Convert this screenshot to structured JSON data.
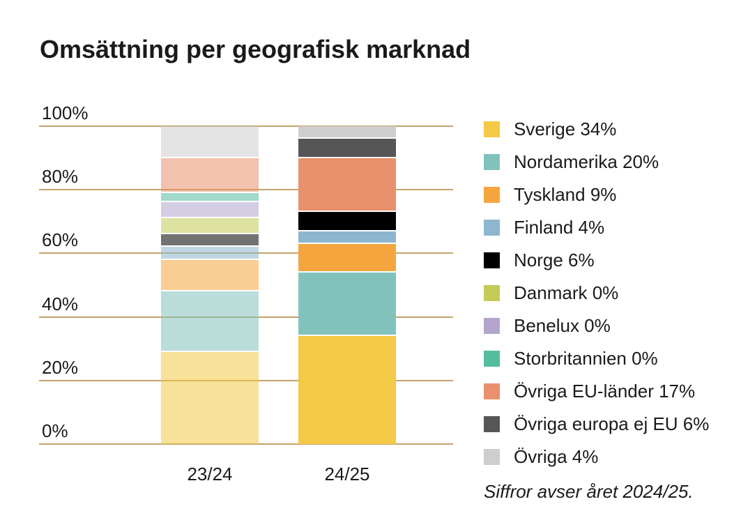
{
  "title": "Omsättning per geografisk marknad",
  "footnote": "Siffror avser året 2024/25.",
  "colors": {
    "gridline": "#c2a468",
    "background": "#ffffff",
    "text": "#1a1a1a"
  },
  "chart_data": {
    "type": "bar",
    "stacked": true,
    "percent_stacked": true,
    "title": "Omsättning per geografisk marknad",
    "xlabel": "",
    "ylabel": "",
    "ylim": [
      0,
      100
    ],
    "grid": true,
    "legend_position": "right",
    "categories": [
      "23/24",
      "24/25"
    ],
    "y_ticks": [
      "100%",
      "80%",
      "60%",
      "40%",
      "20%",
      "0%"
    ],
    "series": [
      {
        "name": "Sverige",
        "legend_label": "Sverige 34%",
        "color": "#f3c946",
        "values": [
          29,
          34
        ]
      },
      {
        "name": "Nordamerika",
        "legend_label": "Nordamerika 20%",
        "color": "#82c2bc",
        "values": [
          19,
          20
        ]
      },
      {
        "name": "Tyskland",
        "legend_label": "Tyskland 9%",
        "color": "#f5a53d",
        "values": [
          10,
          9
        ]
      },
      {
        "name": "Finland",
        "legend_label": "Finland 4%",
        "color": "#8eb6ce",
        "values": [
          4,
          4
        ]
      },
      {
        "name": "Norge",
        "legend_label": "Norge 6%",
        "color": "#000000",
        "values": [
          4,
          6
        ]
      },
      {
        "name": "Danmark",
        "legend_label": "Danmark 0%",
        "color": "#c4cc55",
        "values": [
          5,
          0
        ]
      },
      {
        "name": "Benelux",
        "legend_label": "Benelux 0%",
        "color": "#b3a5ce",
        "values": [
          5,
          0
        ]
      },
      {
        "name": "Storbritannien",
        "legend_label": "Storbritannien 0%",
        "color": "#55bca0",
        "values": [
          3,
          0
        ]
      },
      {
        "name": "Övriga EU-länder",
        "legend_label": "Övriga EU-länder 17%",
        "color": "#e8916c",
        "values": [
          11,
          17
        ]
      },
      {
        "name": "Övriga europa ej EU",
        "legend_label": "Övriga europa ej EU 6%",
        "color": "#565656",
        "values": [
          0,
          6
        ]
      },
      {
        "name": "Övriga",
        "legend_label": "Övriga 4%",
        "color": "#cecece",
        "values": [
          10,
          4
        ]
      }
    ],
    "annotations": [
      "Siffror avser året 2024/25."
    ]
  }
}
